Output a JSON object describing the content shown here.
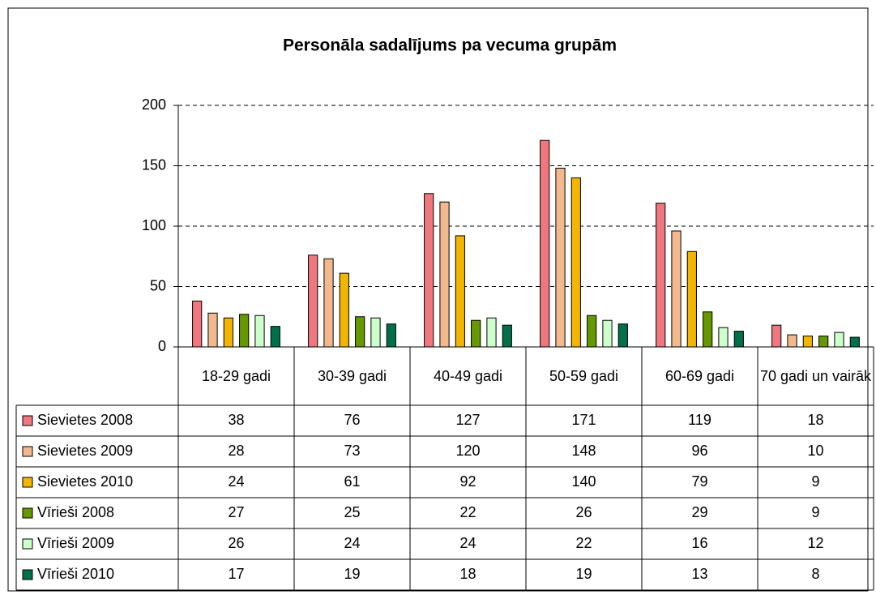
{
  "chart_data": {
    "type": "bar",
    "title": "Personāla sadalījums pa vecuma grupām",
    "categories": [
      "18-29 gadi",
      "30-39 gadi",
      "40-49 gadi",
      "50-59 gadi",
      "60-69 gadi",
      "70 gadi un vairāk"
    ],
    "series": [
      {
        "name": "Sievietes 2008",
        "color": "#f0777f",
        "values": [
          38,
          76,
          127,
          171,
          119,
          18
        ]
      },
      {
        "name": "Sievietes 2009",
        "color": "#f2b98e",
        "values": [
          28,
          73,
          120,
          148,
          96,
          10
        ]
      },
      {
        "name": "Sievietes 2010",
        "color": "#f2b600",
        "values": [
          24,
          61,
          92,
          140,
          79,
          9
        ]
      },
      {
        "name": "Vīrieši 2008",
        "color": "#669900",
        "values": [
          27,
          25,
          22,
          26,
          29,
          9
        ]
      },
      {
        "name": "Vīrieši 2009",
        "color": "#ccffcc",
        "values": [
          26,
          24,
          24,
          22,
          16,
          12
        ]
      },
      {
        "name": "Vīrieši 2010",
        "color": "#00704a",
        "values": [
          17,
          19,
          18,
          19,
          13,
          8
        ]
      }
    ],
    "ylim": [
      0,
      200
    ],
    "yticks": [
      0,
      50,
      100,
      150,
      200
    ],
    "grid": true
  }
}
